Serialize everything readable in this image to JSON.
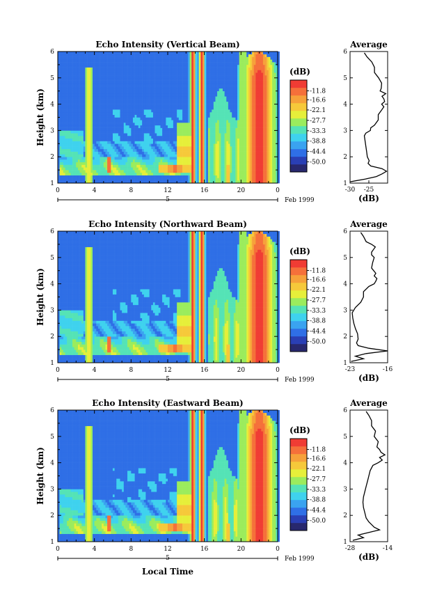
{
  "chart_data": {
    "type": "heatmap",
    "date_label": "Feb 1999",
    "day_label": "5",
    "xlabel": "Local Time",
    "ylabel": "Height (km)",
    "x_ticks": [
      "0",
      "4",
      "8",
      "12",
      "16",
      "20",
      "0"
    ],
    "y_ticks": [
      "1",
      "2",
      "3",
      "4",
      "5",
      "6"
    ],
    "xlim": [
      0,
      24
    ],
    "ylim": [
      1,
      6
    ],
    "colorbar": {
      "unit": "(dB)",
      "tick_labels": [
        "-11.8",
        "-16.6",
        "-22.1",
        "-27.7",
        "-33.3",
        "-38.8",
        "-44.4",
        "-50.0"
      ],
      "range": [
        -55.5,
        -6.0
      ],
      "colors": [
        "#28286e",
        "#2a3fb4",
        "#2f6fe6",
        "#3aa3f0",
        "#3fd2ee",
        "#55e3b6",
        "#9bec5d",
        "#e6ef3a",
        "#f6c93a",
        "#f6a13a",
        "#f5703a",
        "#f03c34"
      ]
    },
    "average_title": "Average",
    "average_xlabel": "(dB)",
    "panels": [
      {
        "title": "Echo Intensity (Vertical Beam)",
        "avg_xlim": [
          -30,
          -20
        ],
        "avg_ticks": [
          "-30",
          "-25"
        ],
        "avg_profile": {
          "height": [
            1.05,
            1.15,
            1.25,
            1.35,
            1.45,
            1.55,
            1.65,
            1.75,
            1.85,
            2.0,
            2.2,
            2.4,
            2.6,
            2.8,
            2.9,
            3.0,
            3.1,
            3.2,
            3.4,
            3.6,
            3.8,
            3.9,
            4.0,
            4.1,
            4.2,
            4.3,
            4.4,
            4.5,
            4.6,
            4.8,
            5.0,
            5.2,
            5.4,
            5.6,
            5.8,
            5.95
          ],
          "db": [
            -30,
            -26,
            -23,
            -21.5,
            -20.3,
            -21.5,
            -24.5,
            -25.2,
            -24.9,
            -25.4,
            -25.6,
            -25.8,
            -26,
            -26.2,
            -25.8,
            -24.6,
            -24.5,
            -23.5,
            -22.5,
            -22.5,
            -21.5,
            -21,
            -21.6,
            -20.8,
            -21,
            -21.5,
            -20.5,
            -22,
            -21.7,
            -21.6,
            -22.4,
            -23.5,
            -23.5,
            -24.2,
            -25.5,
            -26.2
          ]
        }
      },
      {
        "title": "Echo Intensity (Northward Beam)",
        "avg_xlim": [
          -23,
          -16
        ],
        "avg_ticks": [
          "-23",
          "-16"
        ],
        "avg_profile": {
          "height": [
            1.05,
            1.15,
            1.25,
            1.35,
            1.45,
            1.55,
            1.65,
            1.75,
            1.9,
            2.1,
            2.3,
            2.5,
            2.7,
            2.9,
            3.1,
            3.3,
            3.5,
            3.7,
            3.9,
            4.0,
            4.1,
            4.2,
            4.3,
            4.4,
            4.5,
            4.6,
            4.8,
            5.0,
            5.1,
            5.2,
            5.4,
            5.5,
            5.6,
            5.8,
            5.95
          ],
          "db": [
            -22.8,
            -20.5,
            -22,
            -20,
            -16,
            -19.5,
            -21.5,
            -21.8,
            -21.5,
            -21.6,
            -22,
            -22.3,
            -22.5,
            -22.6,
            -22,
            -21,
            -20.5,
            -20.5,
            -19.5,
            -18.5,
            -18.2,
            -18,
            -18.5,
            -18.2,
            -18.6,
            -19,
            -18.8,
            -18.5,
            -19,
            -19,
            -18.3,
            -19,
            -20,
            -20.5,
            -21
          ]
        }
      },
      {
        "title": "Echo Intensity (Eastward Beam)",
        "avg_xlim": [
          -28,
          -14
        ],
        "avg_ticks": [
          "-28",
          "-14"
        ],
        "avg_profile": {
          "height": [
            1.05,
            1.15,
            1.25,
            1.35,
            1.45,
            1.55,
            1.65,
            1.75,
            1.9,
            2.1,
            2.3,
            2.5,
            2.7,
            2.9,
            3.1,
            3.3,
            3.5,
            3.7,
            3.9,
            4.0,
            4.1,
            4.2,
            4.3,
            4.4,
            4.5,
            4.6,
            4.8,
            5.0,
            5.2,
            5.4,
            5.6,
            5.8,
            5.95
          ],
          "db": [
            -27,
            -23,
            -25,
            -21,
            -17,
            -19,
            -20,
            -21,
            -22,
            -22.5,
            -23,
            -23.2,
            -23,
            -22.5,
            -22,
            -21.5,
            -21,
            -20.5,
            -19.5,
            -17.5,
            -16,
            -17,
            -15,
            -16.5,
            -17,
            -18,
            -17.5,
            -19,
            -18.5,
            -20,
            -20,
            -21,
            -22
          ]
        }
      }
    ]
  }
}
